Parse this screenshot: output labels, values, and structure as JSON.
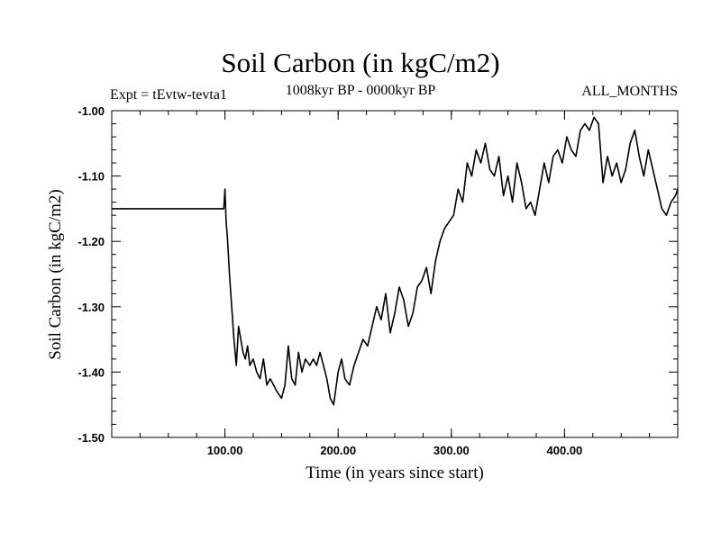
{
  "chart_data": {
    "type": "line",
    "title": "Soil Carbon (in kgC/m2)",
    "subtitle": "1008kyr BP - 0000kyr BP",
    "experiment_label": "Expt = tEvtw-tevta1",
    "months_label": "ALL_MONTHS",
    "xlabel": "Time (in years since start)",
    "ylabel": "Soil Carbon (in kgC/m2)",
    "xlim": [
      0,
      500
    ],
    "ylim": [
      -1.5,
      -1.0
    ],
    "x_ticks": [
      100,
      200,
      300,
      400
    ],
    "x_tick_labels": [
      "100.00",
      "200.00",
      "300.00",
      "400.00"
    ],
    "y_ticks": [
      -1.5,
      -1.4,
      -1.3,
      -1.2,
      -1.1,
      -1.0
    ],
    "y_tick_labels": [
      "-1.50",
      "-1.40",
      "-1.30",
      "-1.20",
      "-1.10",
      "-1.00"
    ],
    "series": [
      {
        "name": "Soil Carbon",
        "color": "#000000",
        "x": [
          0,
          99,
          100,
          101,
          102,
          103,
          104,
          106,
          108,
          110,
          112,
          114,
          116,
          118,
          120,
          122,
          125,
          128,
          131,
          134,
          137,
          140,
          143,
          146,
          150,
          153,
          156,
          159,
          162,
          165,
          168,
          171,
          175,
          178,
          181,
          184,
          187,
          190,
          193,
          196,
          200,
          203,
          206,
          210,
          214,
          218,
          222,
          226,
          230,
          234,
          238,
          242,
          246,
          250,
          254,
          258,
          262,
          266,
          270,
          274,
          278,
          282,
          286,
          290,
          294,
          298,
          302,
          306,
          310,
          314,
          318,
          322,
          326,
          330,
          334,
          338,
          342,
          346,
          350,
          354,
          358,
          362,
          366,
          370,
          374,
          378,
          382,
          386,
          390,
          394,
          398,
          402,
          406,
          410,
          414,
          418,
          422,
          426,
          430,
          434,
          438,
          442,
          446,
          450,
          454,
          458,
          462,
          466,
          470,
          474,
          478,
          482,
          486,
          490,
          494,
          498,
          500
        ],
        "values": [
          -1.15,
          -1.15,
          -1.12,
          -1.17,
          -1.19,
          -1.22,
          -1.25,
          -1.3,
          -1.35,
          -1.39,
          -1.33,
          -1.35,
          -1.37,
          -1.38,
          -1.36,
          -1.39,
          -1.38,
          -1.4,
          -1.41,
          -1.38,
          -1.42,
          -1.41,
          -1.42,
          -1.43,
          -1.44,
          -1.42,
          -1.36,
          -1.41,
          -1.42,
          -1.37,
          -1.4,
          -1.38,
          -1.39,
          -1.38,
          -1.39,
          -1.37,
          -1.39,
          -1.41,
          -1.44,
          -1.45,
          -1.4,
          -1.38,
          -1.41,
          -1.42,
          -1.39,
          -1.37,
          -1.35,
          -1.36,
          -1.33,
          -1.3,
          -1.32,
          -1.28,
          -1.34,
          -1.31,
          -1.27,
          -1.29,
          -1.33,
          -1.31,
          -1.27,
          -1.26,
          -1.24,
          -1.28,
          -1.23,
          -1.2,
          -1.18,
          -1.17,
          -1.16,
          -1.12,
          -1.14,
          -1.08,
          -1.1,
          -1.06,
          -1.08,
          -1.05,
          -1.09,
          -1.1,
          -1.07,
          -1.13,
          -1.1,
          -1.14,
          -1.08,
          -1.11,
          -1.15,
          -1.14,
          -1.16,
          -1.12,
          -1.08,
          -1.11,
          -1.07,
          -1.06,
          -1.08,
          -1.04,
          -1.06,
          -1.07,
          -1.03,
          -1.02,
          -1.03,
          -1.01,
          -1.02,
          -1.11,
          -1.07,
          -1.1,
          -1.08,
          -1.11,
          -1.09,
          -1.05,
          -1.03,
          -1.07,
          -1.1,
          -1.06,
          -1.09,
          -1.12,
          -1.15,
          -1.16,
          -1.14,
          -1.13,
          -1.12
        ]
      }
    ]
  }
}
